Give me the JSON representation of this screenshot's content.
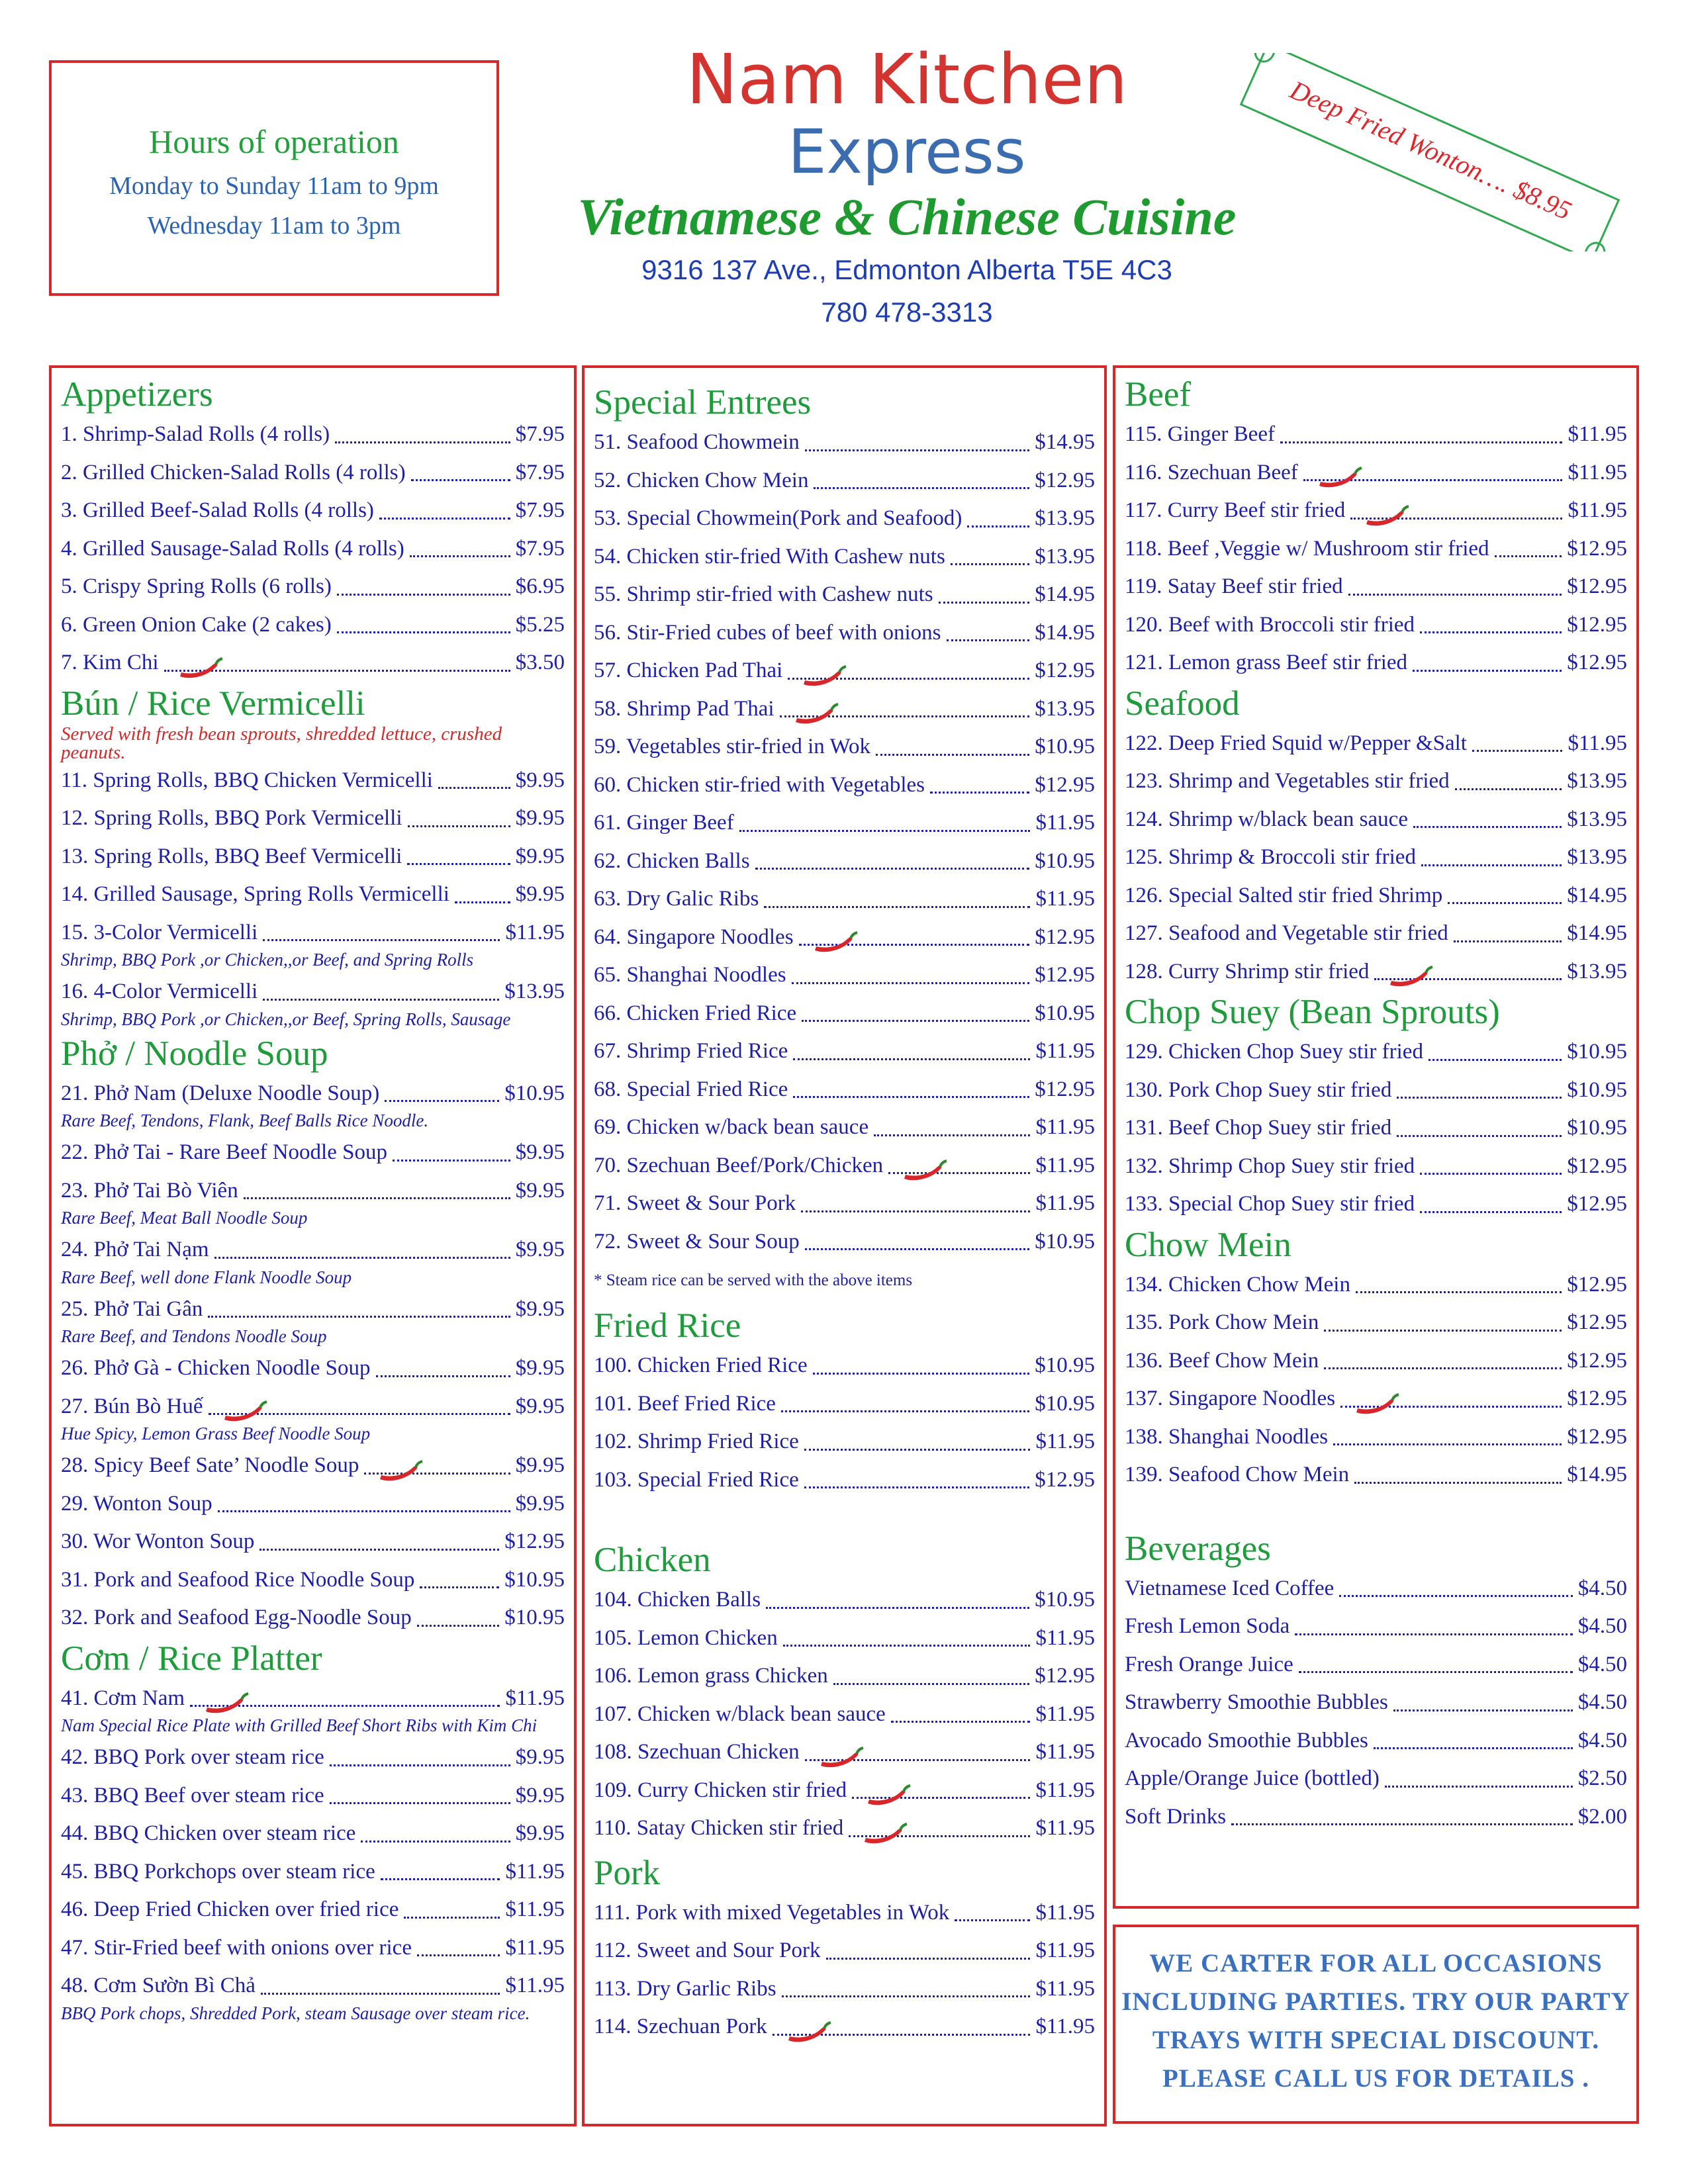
{
  "header": {
    "title": "Nam Kitchen",
    "subtitle": "Express",
    "cuisine": "Vietnamese & Chinese Cuisine",
    "address": "9316 137 Ave., Edmonton Alberta T5E 4C3",
    "phone": "780 478-3313"
  },
  "hours": {
    "title": "Hours of operation",
    "lines": [
      "Monday to Sunday  11am to 9pm",
      "Wednesday  11am to 3pm"
    ]
  },
  "promo": "Deep Fried Wonton…. $8.95",
  "columns": [
    {
      "sections": [
        {
          "title": "Appetizers",
          "items": [
            {
              "name": "1. Shrimp-Salad Rolls (4 rolls)",
              "price": "$7.95"
            },
            {
              "name": "2. Grilled Chicken-Salad Rolls (4 rolls)",
              "price": "$7.95"
            },
            {
              "name": "3. Grilled Beef-Salad Rolls (4 rolls)",
              "price": "$7.95"
            },
            {
              "name": "4. Grilled Sausage-Salad Rolls (4 rolls)",
              "price": "$7.95"
            },
            {
              "name": "5. Crispy Spring Rolls (6 rolls)",
              "price": "$6.95"
            },
            {
              "name": "6. Green Onion Cake (2 cakes)",
              "price": "$5.25"
            },
            {
              "name": "7. Kim Chi",
              "price": "$3.50",
              "spicy": true
            }
          ]
        },
        {
          "title": "Bún / Rice Vermicelli",
          "note": "Served with fresh bean sprouts, shredded lettuce, crushed peanuts.",
          "items": [
            {
              "name": "11. Spring Rolls, BBQ Chicken Vermicelli",
              "price": "$9.95"
            },
            {
              "name": "12. Spring Rolls, BBQ Pork Vermicelli",
              "price": "$9.95"
            },
            {
              "name": "13. Spring Rolls, BBQ Beef Vermicelli",
              "price": "$9.95"
            },
            {
              "name": "14. Grilled Sausage, Spring Rolls Vermicelli",
              "price": "$9.95"
            },
            {
              "name": "15. 3-Color Vermicelli",
              "price": "$11.95",
              "note": "Shrimp, BBQ Pork ,or Chicken,,or Beef, and Spring Rolls"
            },
            {
              "name": "16. 4-Color Vermicelli",
              "price": "$13.95",
              "note": "Shrimp, BBQ Pork ,or Chicken,,or Beef, Spring Rolls, Sausage"
            }
          ]
        },
        {
          "title": "Phở / Noodle Soup",
          "items": [
            {
              "name": "21. Phở Nam (Deluxe Noodle Soup)",
              "price": "$10.95",
              "note": "Rare Beef, Tendons, Flank, Beef Balls Rice Noodle."
            },
            {
              "name": "22. Phở Tai -  Rare Beef Noodle Soup",
              "price": "$9.95"
            },
            {
              "name": "23. Phở Tai Bò Viên",
              "price": "$9.95",
              "note": "Rare Beef, Meat Ball Noodle Soup"
            },
            {
              "name": "24. Phở Tai Nạm",
              "price": "$9.95",
              "note": "Rare Beef, well done Flank Noodle Soup"
            },
            {
              "name": "25. Phở Tai Gân",
              "price": "$9.95",
              "note": "Rare Beef, and Tendons Noodle Soup"
            },
            {
              "name": "26. Phở Gà - Chicken Noodle Soup",
              "price": "$9.95"
            },
            {
              "name": "27. Bún Bò Huế",
              "price": "$9.95",
              "spicy": true,
              "note": "Hue Spicy, Lemon Grass Beef Noodle Soup"
            },
            {
              "name": "28. Spicy  Beef Sate’ Noodle Soup",
              "price": "$9.95",
              "spicy": true
            },
            {
              "name": "29. Wonton Soup",
              "price": "$9.95"
            },
            {
              "name": "30. Wor Wonton Soup",
              "price": "$12.95"
            },
            {
              "name": "31. Pork and  Seafood Rice Noodle Soup",
              "price": "$10.95"
            },
            {
              "name": "32. Pork and  Seafood  Egg-Noodle Soup",
              "price": "$10.95"
            }
          ]
        },
        {
          "title": "Cơm / Rice Platter",
          "items": [
            {
              "name": "41. Cơm Nam",
              "price": "$11.95",
              "spicy": true,
              "note": "Nam Special Rice Plate with Grilled Beef Short Ribs with Kim Chi"
            },
            {
              "name": "42. BBQ Pork over steam rice",
              "price": "$9.95"
            },
            {
              "name": "43. BBQ Beef over steam rice",
              "price": "$9.95"
            },
            {
              "name": "44. BBQ Chicken over steam rice",
              "price": "$9.95"
            },
            {
              "name": "45. BBQ Porkchops over steam rice",
              "price": "$11.95"
            },
            {
              "name": "46. Deep Fried Chicken over fried rice",
              "price": "$11.95"
            },
            {
              "name": "47. Stir-Fried beef with onions over rice",
              "price": "$11.95"
            },
            {
              "name": "48. Cơm Sườn Bì Chả",
              "price": "$11.95",
              "note": "BBQ Pork chops, Shredded Pork, steam Sausage over steam rice."
            }
          ]
        }
      ]
    },
    {
      "sections": [
        {
          "title": "Special Entrees",
          "items": [
            {
              "name": "51. Seafood Chowmein",
              "price": "$14.95"
            },
            {
              "name": "52. Chicken Chow Mein",
              "price": "$12.95"
            },
            {
              "name": "53. Special Chowmein(Pork and Seafood)",
              "price": "$13.95"
            },
            {
              "name": "54. Chicken stir-fried With Cashew nuts",
              "price": "$13.95"
            },
            {
              "name": "55. Shrimp stir-fried with Cashew nuts",
              "price": "$14.95"
            },
            {
              "name": "56. Stir-Fried cubes of  beef with onions",
              "price": "$14.95"
            },
            {
              "name": "57. Chicken Pad Thai",
              "price": "$12.95",
              "spicy": true
            },
            {
              "name": "58. Shrimp Pad Thai",
              "price": "$13.95",
              "spicy": true
            },
            {
              "name": "59. Vegetables stir-fried in Wok",
              "price": "$10.95"
            },
            {
              "name": "60. Chicken stir-fried with Vegetables",
              "price": "$12.95"
            },
            {
              "name": "61. Ginger Beef",
              "price": "$11.95"
            },
            {
              "name": "62. Chicken Balls",
              "price": "$10.95"
            },
            {
              "name": "63. Dry Galic Ribs",
              "price": "$11.95"
            },
            {
              "name": "64. Singapore Noodles",
              "price": "$12.95",
              "spicy": true
            },
            {
              "name": "65. Shanghai Noodles",
              "price": "$12.95"
            },
            {
              "name": "66. Chicken Fried Rice",
              "price": "$10.95"
            },
            {
              "name": "67. Shrimp Fried Rice",
              "price": "$11.95"
            },
            {
              "name": "68. Special Fried Rice",
              "price": "$12.95"
            },
            {
              "name": "69. Chicken w/back bean sauce",
              "price": "$11.95"
            },
            {
              "name": "70. Szechuan Beef/Pork/Chicken",
              "price": "$11.95",
              "spicy": true
            },
            {
              "name": "71. Sweet & Sour Pork",
              "price": "$11.95"
            },
            {
              "name": "72. Sweet & Sour Soup",
              "price": "$10.95"
            }
          ],
          "footnote": "* Steam rice can be served with the above items"
        },
        {
          "title": "Fried Rice",
          "items": [
            {
              "name": "100. Chicken Fried Rice",
              "price": "$10.95"
            },
            {
              "name": "101. Beef Fried Rice",
              "price": "$10.95"
            },
            {
              "name": "102. Shrimp Fried Rice",
              "price": "$11.95"
            },
            {
              "name": "103. Special Fried Rice",
              "price": "$12.95"
            }
          ]
        },
        {
          "title": "Chicken",
          "items": [
            {
              "name": "104. Chicken Balls",
              "price": "$10.95"
            },
            {
              "name": "105. Lemon Chicken",
              "price": "$11.95"
            },
            {
              "name": "106. Lemon grass Chicken",
              "price": "$12.95"
            },
            {
              "name": "107. Chicken w/black bean sauce",
              "price": "$11.95"
            },
            {
              "name": "108. Szechuan Chicken",
              "price": "$11.95",
              "spicy": true
            },
            {
              "name": "109. Curry Chicken  stir fried",
              "price": "$11.95",
              "spicy": true
            },
            {
              "name": "110. Satay Chicken  stir fried",
              "price": "$11.95",
              "spicy": true
            }
          ]
        },
        {
          "title": "Pork",
          "items": [
            {
              "name": "111. Pork with mixed Vegetables in Wok",
              "price": "$11.95"
            },
            {
              "name": "112. Sweet and Sour Pork",
              "price": "$11.95"
            },
            {
              "name": "113. Dry Garlic Ribs",
              "price": "$11.95"
            },
            {
              "name": "114. Szechuan Pork",
              "price": "$11.95",
              "spicy": true
            }
          ]
        }
      ]
    },
    {
      "sections": [
        {
          "title": "Beef",
          "items": [
            {
              "name": "115. Ginger Beef",
              "price": "$11.95"
            },
            {
              "name": "116. Szechuan Beef",
              "price": "$11.95",
              "spicy": true
            },
            {
              "name": "117. Curry Beef  stir fried",
              "price": "$11.95",
              "spicy": true
            },
            {
              "name": "118. Beef ,Veggie w/ Mushroom stir fried",
              "price": "$12.95"
            },
            {
              "name": "119. Satay Beef stir fried",
              "price": "$12.95"
            },
            {
              "name": "120. Beef with Broccoli stir fried",
              "price": "$12.95"
            },
            {
              "name": "121. Lemon grass Beef stir fried",
              "price": "$12.95"
            }
          ]
        },
        {
          "title": "Seafood",
          "items": [
            {
              "name": "122. Deep Fried Squid w/Pepper &Salt",
              "price": "$11.95"
            },
            {
              "name": "123. Shrimp and Vegetables stir fried",
              "price": "$13.95"
            },
            {
              "name": "124. Shrimp w/black bean sauce",
              "price": "$13.95"
            },
            {
              "name": "125. Shrimp & Broccoli stir fried",
              "price": "$13.95"
            },
            {
              "name": "126. Special Salted stir fried Shrimp",
              "price": "$14.95"
            },
            {
              "name": "127. Seafood and Vegetable stir fried",
              "price": "$14.95"
            },
            {
              "name": "128. Curry Shrimp stir fried",
              "price": "$13.95",
              "spicy": true
            }
          ]
        },
        {
          "title": "Chop Suey (Bean Sprouts)",
          "items": [
            {
              "name": "129. Chicken Chop Suey stir fried",
              "price": "$10.95"
            },
            {
              "name": "130. Pork Chop Suey stir fried",
              "price": "$10.95"
            },
            {
              "name": "131. Beef Chop Suey stir fried",
              "price": "$10.95"
            },
            {
              "name": "132. Shrimp Chop Suey stir fried",
              "price": "$12.95"
            },
            {
              "name": "133. Special Chop Suey stir fried",
              "price": "$12.95"
            }
          ]
        },
        {
          "title": "Chow Mein",
          "items": [
            {
              "name": "134. Chicken Chow Mein",
              "price": "$12.95"
            },
            {
              "name": "135. Pork Chow Mein",
              "price": "$12.95"
            },
            {
              "name": "136. Beef Chow Mein",
              "price": "$12.95"
            },
            {
              "name": "137. Singapore Noodles",
              "price": "$12.95",
              "spicy": true
            },
            {
              "name": "138. Shanghai Noodles",
              "price": "$12.95"
            },
            {
              "name": "139. Seafood Chow Mein",
              "price": "$14.95"
            }
          ]
        },
        {
          "title": "Beverages",
          "items": [
            {
              "name": "Vietnamese Iced Coffee",
              "price": "$4.50"
            },
            {
              "name": "Fresh Lemon Soda",
              "price": "$4.50"
            },
            {
              "name": "Fresh Orange Juice",
              "price": "$4.50"
            },
            {
              "name": "Strawberry Smoothie Bubbles",
              "price": "$4.50"
            },
            {
              "name": "Avocado Smoothie Bubbles",
              "price": "$4.50"
            },
            {
              "name": "Apple/Orange Juice (bottled)",
              "price": "$2.50"
            },
            {
              "name": "Soft Drinks",
              "price": "$2.00"
            }
          ]
        }
      ]
    }
  ],
  "catering": [
    "WE CARTER FOR  ALL OCCASIONS",
    "INCLUDING PARTIES.  TRY OUR PARTY",
    "TRAYS WITH SPECIAL DISCOUNT.",
    "PLEASE CALL US FOR DETAILS ."
  ]
}
